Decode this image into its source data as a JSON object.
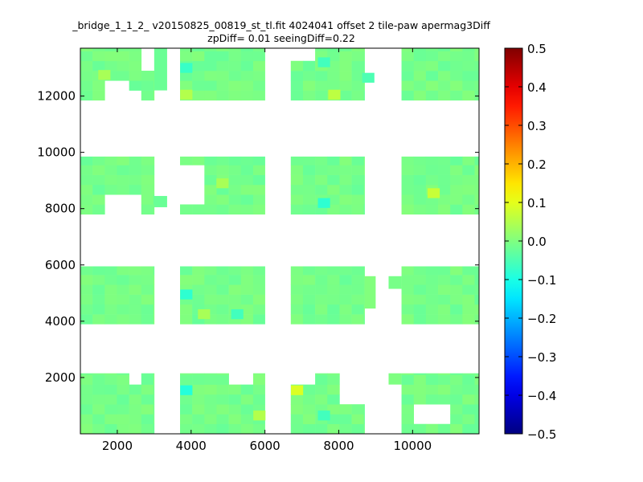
{
  "chart_data": {
    "type": "heatmap",
    "title": "_bridge_1_1_2_ v20150825_00819_st_tl.fit 4024041 offset 2 tile-paw apermag3Diff",
    "subtitle": "zpDiff= 0.01 seeingDiff=0.22",
    "xlabel": "",
    "ylabel": "",
    "xlim": [
      1000,
      11800
    ],
    "ylim": [
      0,
      13700
    ],
    "x_ticks": [
      2000,
      4000,
      6000,
      8000,
      10000
    ],
    "x_tick_labels": [
      "2000",
      "4000",
      "6000",
      "8000",
      "10000"
    ],
    "y_ticks": [
      2000,
      4000,
      6000,
      8000,
      10000,
      12000
    ],
    "y_tick_labels": [
      "2000",
      "4000",
      "6000",
      "8000",
      "10000",
      "12000"
    ],
    "colorbar": {
      "colormap": "jet",
      "range": [
        -0.5,
        0.5
      ],
      "ticks": [
        0.5,
        0.4,
        0.3,
        0.2,
        0.1,
        0.0,
        -0.1,
        -0.2,
        -0.3,
        -0.4,
        -0.5
      ],
      "tick_labels": [
        "0.5",
        "0.4",
        "0.3",
        "0.2",
        "0.1",
        "0.0",
        "−0.1",
        "−0.2",
        "−0.3",
        "−0.4",
        "−0.5"
      ]
    },
    "grid": false,
    "cell_size": [
      330,
      350
    ],
    "column_bands": [
      {
        "x_start": 1000,
        "x_end": 3000
      },
      {
        "x_start": 3700,
        "x_end": 6000
      },
      {
        "x_start": 6700,
        "x_end": 8700
      },
      {
        "x_start": 9700,
        "x_end": 11800
      }
    ],
    "row_bands": [
      {
        "y_start": 0,
        "y_end": 2150
      },
      {
        "y_start": 3900,
        "y_end": 5950
      },
      {
        "y_start": 7800,
        "y_end": 9850
      },
      {
        "y_start": 11850,
        "y_end": 13700
      }
    ],
    "typical_value": -0.01,
    "value_spread": 0.03,
    "highlighted_cells": [
      {
        "x": 3870,
        "y": 13000,
        "value": -0.07
      },
      {
        "x": 3870,
        "y": 4950,
        "value": -0.08
      },
      {
        "x": 3870,
        "y": 1550,
        "value": -0.09
      },
      {
        "x": 7600,
        "y": 8200,
        "value": -0.08
      },
      {
        "x": 6870,
        "y": 1550,
        "value": 0.09
      },
      {
        "x": 7880,
        "y": 12050,
        "value": 0.06
      },
      {
        "x": 3870,
        "y": 12050,
        "value": 0.05
      },
      {
        "x": 10570,
        "y": 8550,
        "value": 0.07
      },
      {
        "x": 4350,
        "y": 4250,
        "value": 0.04
      },
      {
        "x": 4850,
        "y": 8900,
        "value": 0.04
      },
      {
        "x": 5850,
        "y": 650,
        "value": 0.05
      },
      {
        "x": 1650,
        "y": 12750,
        "value": 0.04
      },
      {
        "x": 7600,
        "y": 13200,
        "value": -0.06
      },
      {
        "x": 8800,
        "y": 12650,
        "value": -0.05
      },
      {
        "x": 7600,
        "y": 650,
        "value": -0.06
      },
      {
        "x": 5250,
        "y": 4250,
        "value": -0.06
      }
    ],
    "gaps": [
      {
        "x0": 1700,
        "x1": 2000,
        "y0": 12100,
        "y1": 12400
      },
      {
        "x0": 10100,
        "x1": 10700,
        "y0": 450,
        "y1": 800
      },
      {
        "x0": 1950,
        "x1": 2350,
        "y0": 7800,
        "y1": 8250
      },
      {
        "x0": 2350,
        "x1": 2650,
        "y0": 1750,
        "y1": 2150
      },
      {
        "x0": 5150,
        "x1": 5500,
        "y0": 1750,
        "y1": 2150
      },
      {
        "x0": 6700,
        "x1": 7100,
        "y0": 1750,
        "y1": 2150
      },
      {
        "x0": 2000,
        "x1": 2350,
        "y0": 11850,
        "y1": 12150
      },
      {
        "x0": 2650,
        "x1": 3000,
        "y0": 13150,
        "y1": 13700
      },
      {
        "x0": 3700,
        "x1": 4050,
        "y0": 8200,
        "y1": 9450
      },
      {
        "x0": 8200,
        "x1": 8700,
        "y0": 1100,
        "y1": 2150
      },
      {
        "x0": 6700,
        "x1": 7350,
        "y0": 13300,
        "y1": 13700
      }
    ],
    "extra_cells": [
      {
        "x0": 3000,
        "x1": 3350,
        "y0": 12200,
        "y1": 13700
      },
      {
        "x0": 3000,
        "x1": 3350,
        "y0": 8050,
        "y1": 8450
      },
      {
        "x0": 8700,
        "x1": 9000,
        "y0": 4450,
        "y1": 5600
      },
      {
        "x0": 9350,
        "x1": 9700,
        "y0": 5150,
        "y1": 5600
      },
      {
        "x0": 9350,
        "x1": 9700,
        "y0": 1750,
        "y1": 2150
      }
    ]
  }
}
